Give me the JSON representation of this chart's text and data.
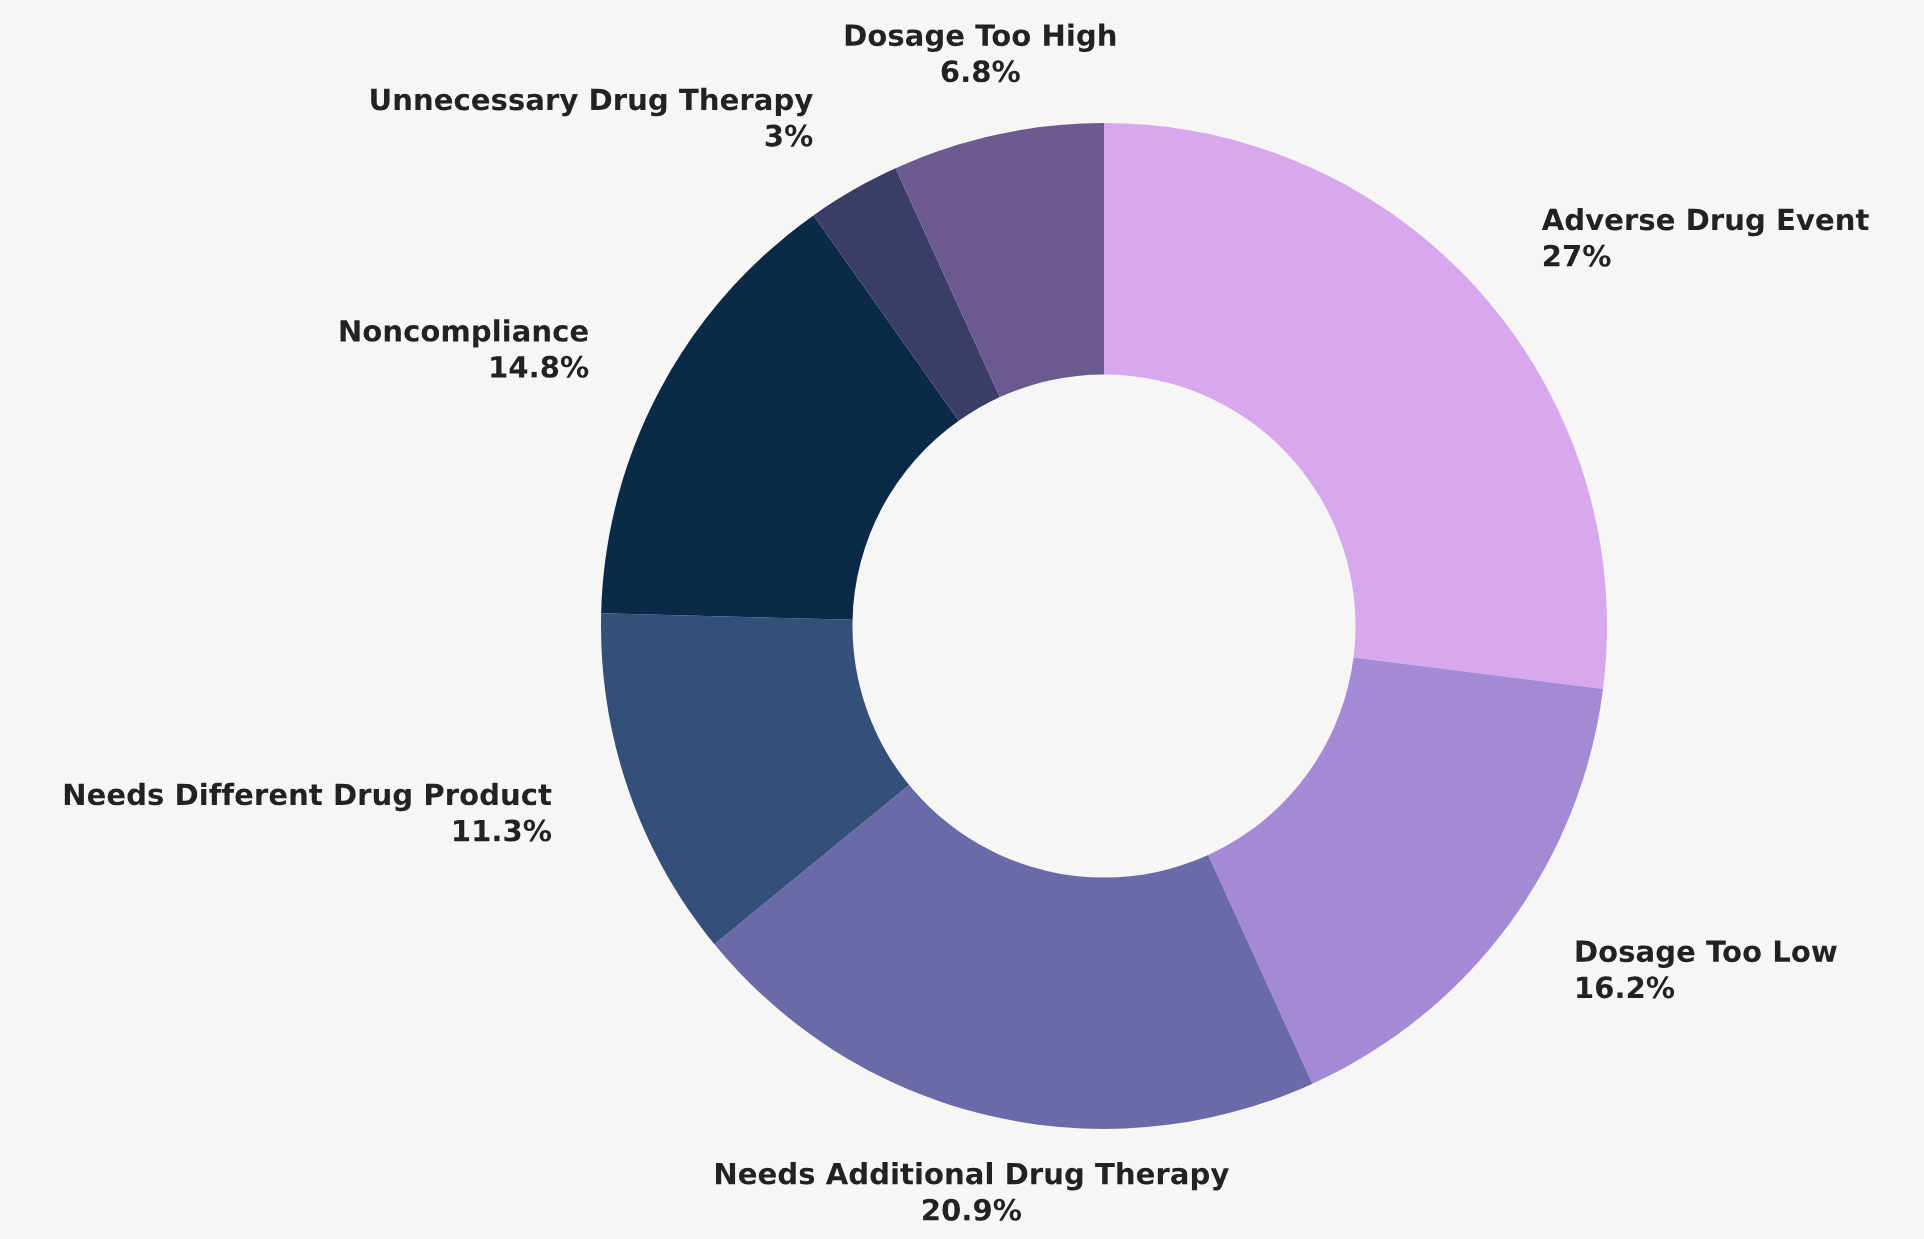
{
  "chart_data": {
    "type": "donut",
    "categories": [
      "Adverse Drug Event",
      "Dosage Too Low",
      "Needs Additional Drug Therapy",
      "Needs Different Drug Product",
      "Noncompliance",
      "Unnecessary Drug Therapy",
      "Dosage Too High"
    ],
    "values": [
      27,
      16.2,
      20.9,
      11.3,
      14.8,
      3,
      6.8
    ],
    "value_labels": [
      "27%",
      "16.2%",
      "20.9%",
      "11.3%",
      "14.8%",
      "3%",
      "6.8%"
    ],
    "colors": [
      "#d8a8ee",
      "#a48ad6",
      "#6a6aa8",
      "#34507a",
      "#0a2a48",
      "#3a3d68",
      "#6a5a90"
    ],
    "legend": false
  }
}
